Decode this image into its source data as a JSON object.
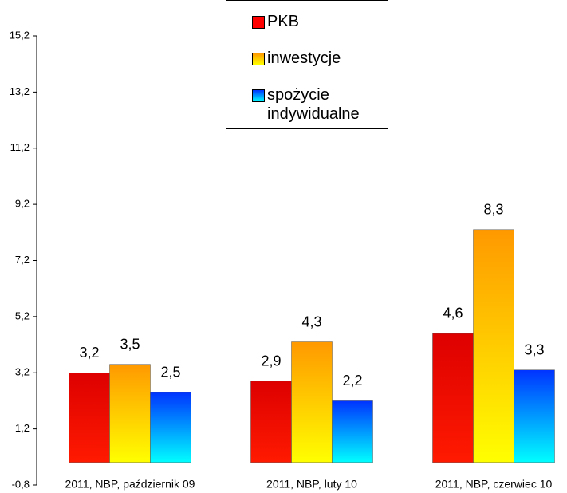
{
  "chart_data": {
    "type": "bar",
    "categories": [
      "2011, NBP, październik 09",
      "2011, NBP, luty 10",
      "2011, NBP, czerwiec 10"
    ],
    "series": [
      {
        "name": "PKB",
        "color": "#ff0000",
        "values": [
          3.2,
          2.9,
          4.6
        ],
        "value_labels": [
          "3,2",
          "2,9",
          "4,6"
        ]
      },
      {
        "name": "inwestycje",
        "color": "#ff9900",
        "values": [
          3.5,
          4.3,
          8.3
        ],
        "value_labels": [
          "3,5",
          "4,3",
          "8,3"
        ]
      },
      {
        "name": "spożycie indywidualne",
        "color": "#0033ff",
        "values": [
          2.5,
          2.2,
          3.3
        ],
        "value_labels": [
          "2,5",
          "2,2",
          "3,3"
        ]
      }
    ],
    "ylim": [
      -0.8,
      15.2
    ],
    "yticks": [
      {
        "value": -0.8,
        "label": "-0,8"
      },
      {
        "value": 1.2,
        "label": "1,2"
      },
      {
        "value": 3.2,
        "label": "3,2"
      },
      {
        "value": 5.2,
        "label": "5,2"
      },
      {
        "value": 7.2,
        "label": "7,2"
      },
      {
        "value": 9.2,
        "label": "9,2"
      },
      {
        "value": 11.2,
        "label": "11,2"
      },
      {
        "value": 13.2,
        "label": "13,2"
      },
      {
        "value": 15.2,
        "label": "15,2"
      }
    ],
    "legend": "top-center"
  }
}
